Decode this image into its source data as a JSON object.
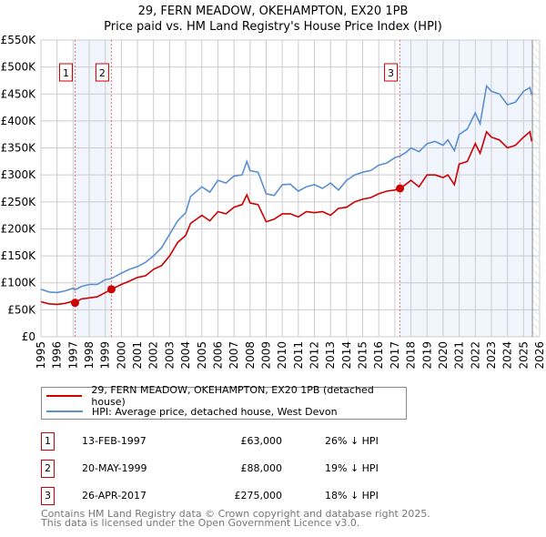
{
  "chart_data": {
    "type": "line",
    "title": "29, FERN MEADOW, OKEHAMPTON, EX20 1PB",
    "subtitle": "Price paid vs. HM Land Registry's House Price Index (HPI)",
    "xlim": [
      1995,
      2026
    ],
    "ylim": [
      0,
      550000
    ],
    "x_ticks": [
      "1995",
      "1996",
      "1997",
      "1998",
      "1999",
      "2000",
      "2001",
      "2002",
      "2003",
      "2004",
      "2005",
      "2006",
      "2007",
      "2008",
      "2009",
      "2010",
      "2011",
      "2012",
      "2013",
      "2014",
      "2015",
      "2016",
      "2017",
      "2018",
      "2019",
      "2020",
      "2021",
      "2022",
      "2023",
      "2024",
      "2025",
      "2026"
    ],
    "y_ticks": [
      {
        "v": 0,
        "label": "£0"
      },
      {
        "v": 50000,
        "label": "£50K"
      },
      {
        "v": 100000,
        "label": "£100K"
      },
      {
        "v": 150000,
        "label": "£150K"
      },
      {
        "v": 200000,
        "label": "£200K"
      },
      {
        "v": 250000,
        "label": "£250K"
      },
      {
        "v": 300000,
        "label": "£300K"
      },
      {
        "v": 350000,
        "label": "£350K"
      },
      {
        "v": 400000,
        "label": "£400K"
      },
      {
        "v": 450000,
        "label": "£450K"
      },
      {
        "v": 500000,
        "label": "£500K"
      },
      {
        "v": 550000,
        "label": "£550K"
      }
    ],
    "grid": true,
    "series": [
      {
        "name": "29, FERN MEADOW, OKEHAMPTON, EX20 1PB (detached house)",
        "color": "#cc0000",
        "x": [
          1995,
          1995.5,
          1996,
          1996.5,
          1997,
          1997.12,
          1997.5,
          1998,
          1998.5,
          1999,
          1999.38,
          2000,
          2000.5,
          2001,
          2001.5,
          2002,
          2002.5,
          2003,
          2003.5,
          2004,
          2004.3,
          2005,
          2005.5,
          2006,
          2006.5,
          2007,
          2007.5,
          2007.8,
          2008,
          2008.5,
          2009,
          2009.5,
          2010,
          2010.5,
          2011,
          2011.5,
          2012,
          2012.5,
          2013,
          2013.5,
          2014,
          2014.5,
          2015,
          2015.5,
          2016,
          2016.5,
          2017,
          2017.32,
          2017.7,
          2018,
          2018.5,
          2019,
          2019.5,
          2020,
          2020.3,
          2020.7,
          2021,
          2021.5,
          2022,
          2022.3,
          2022.7,
          2023,
          2023.5,
          2024,
          2024.5,
          2025,
          2025.4,
          2025.5
        ],
        "y": [
          65000,
          61000,
          60000,
          62000,
          66000,
          63000,
          70000,
          72000,
          74000,
          82000,
          88000,
          97000,
          103000,
          110000,
          113000,
          125000,
          132000,
          150000,
          175000,
          188000,
          210000,
          225000,
          215000,
          232000,
          228000,
          240000,
          245000,
          263000,
          248000,
          245000,
          213000,
          218000,
          228000,
          228000,
          222000,
          232000,
          230000,
          232000,
          225000,
          238000,
          240000,
          250000,
          255000,
          258000,
          265000,
          270000,
          272000,
          275000,
          283000,
          290000,
          278000,
          300000,
          300000,
          295000,
          300000,
          282000,
          320000,
          325000,
          358000,
          340000,
          380000,
          370000,
          365000,
          350000,
          355000,
          370000,
          380000,
          362000
        ]
      },
      {
        "name": "HPI: Average price, detached house, West Devon",
        "color": "#5b8fd0",
        "x": [
          1995,
          1995.5,
          1996,
          1996.5,
          1997,
          1997.12,
          1997.5,
          1998,
          1998.5,
          1999,
          1999.38,
          2000,
          2000.5,
          2001,
          2001.5,
          2002,
          2002.5,
          2003,
          2003.5,
          2004,
          2004.3,
          2005,
          2005.5,
          2006,
          2006.5,
          2007,
          2007.5,
          2007.8,
          2008,
          2008.5,
          2009,
          2009.5,
          2010,
          2010.5,
          2011,
          2011.5,
          2012,
          2012.5,
          2013,
          2013.5,
          2014,
          2014.5,
          2015,
          2015.5,
          2016,
          2016.5,
          2017,
          2017.32,
          2017.7,
          2018,
          2018.5,
          2019,
          2019.5,
          2020,
          2020.3,
          2020.7,
          2021,
          2021.5,
          2022,
          2022.3,
          2022.7,
          2023,
          2023.5,
          2024,
          2024.5,
          2025,
          2025.4,
          2025.5
        ],
        "y": [
          88000,
          83000,
          82000,
          85000,
          90000,
          87000,
          93000,
          97000,
          97000,
          106000,
          108000,
          118000,
          125000,
          130000,
          138000,
          150000,
          165000,
          190000,
          215000,
          230000,
          260000,
          278000,
          268000,
          290000,
          285000,
          298000,
          300000,
          325000,
          308000,
          305000,
          265000,
          262000,
          282000,
          283000,
          270000,
          278000,
          282000,
          275000,
          285000,
          272000,
          290000,
          300000,
          305000,
          308000,
          318000,
          322000,
          332000,
          335000,
          342000,
          350000,
          343000,
          358000,
          362000,
          355000,
          365000,
          345000,
          375000,
          385000,
          415000,
          395000,
          465000,
          455000,
          450000,
          430000,
          435000,
          455000,
          462000,
          448000
        ]
      }
    ],
    "sales": [
      {
        "n": "1",
        "x": 1997.12,
        "y": 63000
      },
      {
        "n": "2",
        "x": 1999.38,
        "y": 88000
      },
      {
        "n": "3",
        "x": 2017.32,
        "y": 275000
      }
    ],
    "shaded_ranges": [
      [
        1997.12,
        1999.38
      ],
      [
        2017.32,
        2025.55
      ]
    ],
    "future_hatched_from": 2025.55
  },
  "legend": {
    "property": "29, FERN MEADOW, OKEHAMPTON, EX20 1PB (detached house)",
    "hpi": "HPI: Average price, detached house, West Devon"
  },
  "transactions": [
    {
      "n": "1",
      "date": "13-FEB-1997",
      "price": "£63,000",
      "hpi": "26% ↓ HPI"
    },
    {
      "n": "2",
      "date": "20-MAY-1999",
      "price": "£88,000",
      "hpi": "19% ↓ HPI"
    },
    {
      "n": "3",
      "date": "26-APR-2017",
      "price": "£275,000",
      "hpi": "18% ↓ HPI"
    }
  ],
  "footer": {
    "line1": "Contains HM Land Registry data © Crown copyright and database right 2025.",
    "line2": "This data is licensed under the Open Government Licence v3.0."
  }
}
